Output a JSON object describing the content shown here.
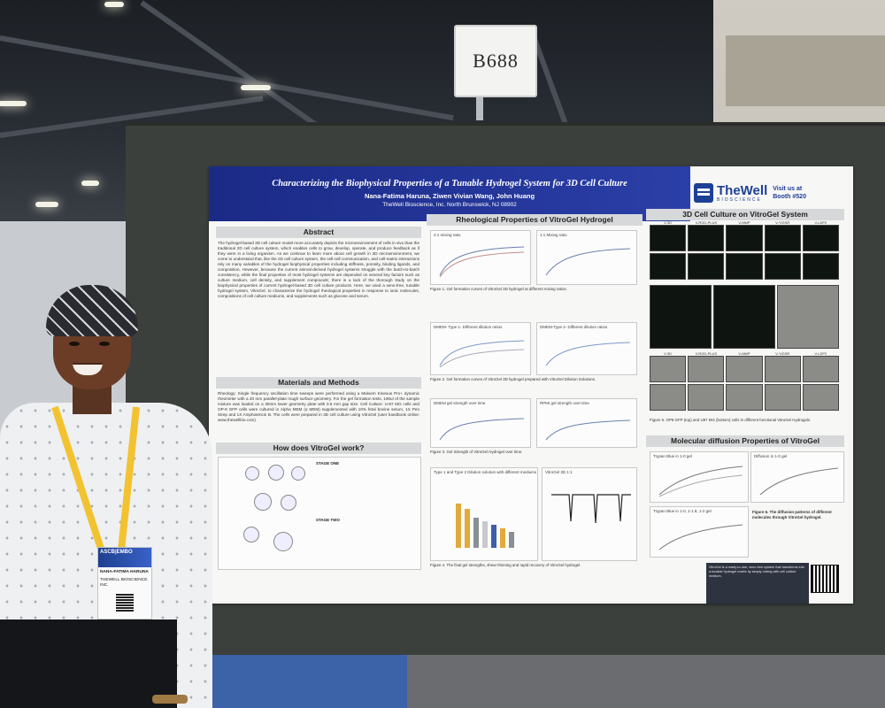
{
  "booth_sign": {
    "number": "B688"
  },
  "poster": {
    "title": "Characterizing the Biophysical Properties of a Tunable Hydrogel System for 3D Cell Culture",
    "authors": "Nana-Fatima Haruna, Ziwen Vivian Wang, John Huang",
    "affiliation": "TheWell Bioscience, Inc. North Brunswick, NJ 08902",
    "brand": {
      "name": "TheWell",
      "sub": "BIOSCIENCE",
      "visit": "Visit us at",
      "booth": "Booth #520"
    },
    "sections": {
      "abstract": {
        "heading": "Abstract",
        "text": "The hydrogel-based 3D cell culture model more accurately depicts the microenvironment of cells in vivo than the traditional 2D cell culture system, which enables cells to grow, develop, operate, and produce feedback as if they were in a living organism. As we continue to learn more about cell growth in 3D microenvironment, we come to understand that, like the 2D cell culture system, the cell-cell communication, and cell-matrix interactions rely on many variables of the hydrogel biophysical properties including stiffness, porosity, binding ligands, and composition. However, because the current animal-derived hydrogel systems struggle with the batch-to-batch consistency, while the final properties of most hydrogel systems are depended on several key factors such as culture medium, cell density, and supplement compounds; there is a lack of the thorough study on the biophysical properties of current hydrogel-based 3D cell culture products. Here, we used a xeno-free, tunable hydrogel system, VitroGel, to characterize the hydrogel rheological properties in response to ionic molecules, compositions of cell culture mediums, and supplements such as glucose and serum."
      },
      "methods": {
        "heading": "Materials and Methods",
        "text": "Rheology: Single frequency oscillation time sweeps were performed using a Malvern Kinexus Pro+ dynamic rheometer with a 20 mm parallel-plate rough surface geometry. For the gel formation tests, 190ul of the sample mixture was loaded on a 30mm lower geometry plate with 0.5 mm gap size. Cell Culture: U-87 MG cells and OP-9 GFP cells were cultured in Alpha MEM (α MEM) supplemented with 10% fetal bovine serum, 1X Pen Strep and 1X Amphotericin B. The cells were prepared in 3D cell culture using VitroGel (user handbook online: www.thewellbio.com)."
      },
      "how": {
        "heading": "How does VitroGel work?",
        "stage_one": "STAGE ONE",
        "stage_two": "STAGE TWO"
      },
      "rheology": {
        "heading": "Rheological Properties of VitroGel Hydrogel",
        "chart_a": "4:1 mixing ratio",
        "chart_b": "1:1 Mixing ratio",
        "chart_c": "DMEM- Type 1- Different dilution ratios",
        "chart_d": "DMEM-Type 2- Different dilution ratios",
        "chart_e": "DMEM gel strength over time",
        "chart_f": "RPMI gel strength over time",
        "chart_g": "Type 1 and Type 2 Dilution solution with different mediums",
        "chart_h": "VitroGel 3D 1:1",
        "fig1": "Figure 1. Gel formation curves of VitroGel 3D hydrogel at different mixing ratios.",
        "fig2": "Figure 2. Gel formation curves of VitroGel 3D hydrogel prepared with VitroGel Dilution Solutions.",
        "fig3": "Figure 3. Gel Strength of VitroGel Hydrogel over time.",
        "fig4": "Figure 4. The final gel strengths, shear thinning and rapid recovery of VitroGel hydrogel."
      },
      "culture": {
        "heading": "3D Cell Culture on VitroGel System",
        "labels": [
          "V-3D",
          "V-RGD-PLUS",
          "V-MMP",
          "V-YIGSR",
          "V-LDP2"
        ],
        "fig5": "Figure 5. OP9 GFP (top) and U87 MG (bottom) cells in different functional VitroGel Hydrogels."
      },
      "diffusion": {
        "heading": "Molecular diffusion Properties of VitroGel",
        "chart_a": "Trypan Blue in 1-0 gel",
        "chart_b": "Diffusion in 1-0 gel",
        "chart_c": "Trypan Blue in 1-0, 1-1.8, 1-2 gel",
        "fig6": "Figure 6. The diffusion patterns of different molecules through VitroGel hydrogel."
      },
      "notes": "VitroGel is a ready-to-use, xeno-free system that transforms into a tunable hydrogel matrix by simply mixing with cell culture medium."
    }
  },
  "badge": {
    "event": "ASCB|EMBO",
    "name": "NANA-FATIMA HARUNA",
    "org": "THEWELL BIOSCIENCE INC."
  }
}
